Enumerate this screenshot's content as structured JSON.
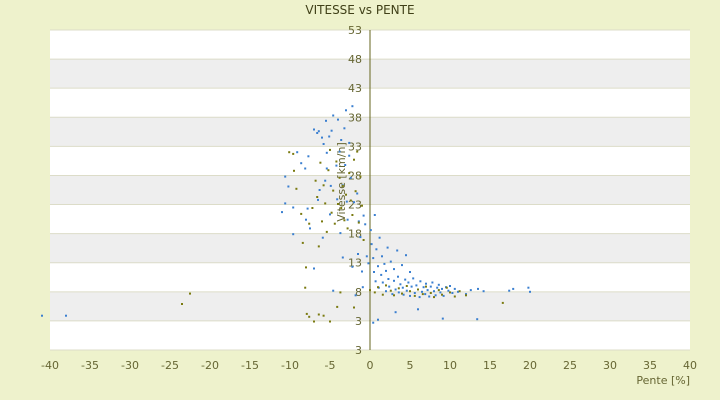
{
  "chart_data": {
    "type": "scatter",
    "title": "VITESSE vs PENTE",
    "xlabel": "Pente [%]",
    "ylabel": "Vitesse [km/h]",
    "xlim": [
      -40,
      40
    ],
    "ylim": [
      -2,
      53
    ],
    "x_ticks": [
      "-40",
      "-35",
      "-30",
      "-25",
      "-20",
      "-15",
      "-10",
      "-5",
      "0",
      "5",
      "10",
      "15",
      "20",
      "25",
      "30",
      "35",
      "40"
    ],
    "y_ticks": [
      "53",
      "48",
      "43",
      "38",
      "33",
      "28",
      "23",
      "18",
      "13",
      "8",
      "3",
      "3"
    ],
    "grid": true,
    "legend": "none",
    "series": [
      {
        "color": "#3a7fd0",
        "points": [
          [
            -41,
            3.9
          ],
          [
            -38,
            3.9
          ],
          [
            -11,
            21.7
          ],
          [
            -10.6,
            23.2
          ],
          [
            -10.6,
            27.8
          ],
          [
            -10.2,
            26.1
          ],
          [
            -9.6,
            17.9
          ],
          [
            -9.6,
            22.5
          ],
          [
            -9.1,
            32
          ],
          [
            -8.6,
            30.1
          ],
          [
            -8.1,
            29.2
          ],
          [
            -8,
            20.4
          ],
          [
            -7.8,
            22.3
          ],
          [
            -7.7,
            31.3
          ],
          [
            -7.5,
            18.9
          ],
          [
            -7,
            12
          ],
          [
            -7,
            35.9
          ],
          [
            -6.6,
            35.3
          ],
          [
            -6.5,
            23.8
          ],
          [
            -6.4,
            35.6
          ],
          [
            -6.3,
            25.5
          ],
          [
            -6,
            34.5
          ],
          [
            -5.9,
            17.3
          ],
          [
            -5.8,
            33.4
          ],
          [
            -5.6,
            27.1
          ],
          [
            -5.5,
            37.4
          ],
          [
            -5.4,
            29.2
          ],
          [
            -5.4,
            31.9
          ],
          [
            -5.1,
            34.7
          ],
          [
            -5,
            21.3
          ],
          [
            -4.9,
            26.2
          ],
          [
            -4.8,
            35.7
          ],
          [
            -4.6,
            38.3
          ],
          [
            -4.6,
            8.2
          ],
          [
            -4.2,
            29.7
          ],
          [
            -4.1,
            23.9
          ],
          [
            -4,
            37.6
          ],
          [
            -3.8,
            32.1
          ],
          [
            -3.7,
            18.1
          ],
          [
            -3.6,
            34.1
          ],
          [
            -3.4,
            26.3
          ],
          [
            -3.4,
            13.9
          ],
          [
            -3.2,
            36.1
          ],
          [
            -3.1,
            29.8
          ],
          [
            -3,
            39.2
          ],
          [
            -2.9,
            23.5
          ],
          [
            -2.8,
            20.4
          ],
          [
            -2.6,
            31.4
          ],
          [
            -2.6,
            33.6
          ],
          [
            -2.4,
            27.6
          ],
          [
            -2.2,
            12.3
          ],
          [
            -2.2,
            39.9
          ],
          [
            -2,
            23.4
          ],
          [
            -1.8,
            7.4
          ],
          [
            -1.6,
            24.9
          ],
          [
            -1.5,
            14.5
          ],
          [
            -1.4,
            20.1
          ],
          [
            -1.2,
            17.4
          ],
          [
            -1,
            11.5
          ],
          [
            -0.9,
            8.8
          ],
          [
            -0.8,
            21.1
          ],
          [
            -0.6,
            19.6
          ],
          [
            -0.4,
            14.1
          ],
          [
            -0.2,
            12.9
          ],
          [
            0.1,
            18.6
          ],
          [
            0.2,
            16.2
          ],
          [
            0.4,
            13.8
          ],
          [
            0.5,
            11.4
          ],
          [
            0.6,
            21.2
          ],
          [
            0.7,
            9.8
          ],
          [
            0.8,
            15.3
          ],
          [
            1,
            12.4
          ],
          [
            1.1,
            8.7
          ],
          [
            1.2,
            17.3
          ],
          [
            1.4,
            10.9
          ],
          [
            1.5,
            14.1
          ],
          [
            1.6,
            9.6
          ],
          [
            1.8,
            12.8
          ],
          [
            2,
            11.6
          ],
          [
            2,
            8.1
          ],
          [
            2.2,
            15.6
          ],
          [
            2.3,
            10.2
          ],
          [
            2.4,
            8.9
          ],
          [
            2.6,
            13.2
          ],
          [
            2.8,
            7.6
          ],
          [
            3,
            9.9
          ],
          [
            3,
            11.9
          ],
          [
            3.2,
            8.4
          ],
          [
            3.4,
            15.1
          ],
          [
            3.5,
            10.6
          ],
          [
            3.6,
            7.9
          ],
          [
            3.8,
            9.3
          ],
          [
            4,
            12.6
          ],
          [
            4.1,
            8.7
          ],
          [
            4.2,
            7.5
          ],
          [
            4.4,
            10.1
          ],
          [
            4.5,
            14.3
          ],
          [
            4.6,
            8.2
          ],
          [
            4.8,
            9.6
          ],
          [
            5,
            11.4
          ],
          [
            5,
            7.3
          ],
          [
            5.2,
            8.9
          ],
          [
            5.4,
            10.3
          ],
          [
            5.6,
            7.8
          ],
          [
            5.8,
            9.1
          ],
          [
            6,
            8.4
          ],
          [
            6.2,
            7.1
          ],
          [
            6.3,
            9.8
          ],
          [
            6.5,
            8
          ],
          [
            6.7,
            8.8
          ],
          [
            6.9,
            7.6
          ],
          [
            7,
            9.4
          ],
          [
            7.2,
            8.3
          ],
          [
            7.4,
            7.2
          ],
          [
            7.6,
            8.9
          ],
          [
            7.8,
            9.6
          ],
          [
            8,
            8.1
          ],
          [
            8.2,
            7.4
          ],
          [
            8.4,
            8.7
          ],
          [
            8.6,
            9.2
          ],
          [
            8.8,
            7.9
          ],
          [
            9,
            8.5
          ],
          [
            9.2,
            7.3
          ],
          [
            9.5,
            8.8
          ],
          [
            9.8,
            8.2
          ],
          [
            10,
            9
          ],
          [
            10.3,
            7.8
          ],
          [
            10.6,
            8.5
          ],
          [
            11,
            8
          ],
          [
            12,
            7.6
          ],
          [
            12.6,
            8.3
          ],
          [
            13.5,
            8.5
          ],
          [
            14.2,
            8.1
          ],
          [
            17.4,
            8.2
          ],
          [
            17.9,
            8.5
          ],
          [
            19.8,
            8.7
          ],
          [
            20,
            8
          ],
          [
            3.2,
            4.5
          ],
          [
            6,
            5
          ],
          [
            13.4,
            3.3
          ],
          [
            9.1,
            3.4
          ],
          [
            1,
            3.2
          ],
          [
            0.4,
            2.7
          ]
        ]
      },
      {
        "color": "#7a7a10",
        "points": [
          [
            -23.5,
            5.9
          ],
          [
            -22.5,
            7.7
          ],
          [
            -10.1,
            32
          ],
          [
            -9.6,
            31.7
          ],
          [
            -9.5,
            28.8
          ],
          [
            -9.2,
            25.7
          ],
          [
            -8.6,
            21.4
          ],
          [
            -8.4,
            16.4
          ],
          [
            -8.1,
            8.7
          ],
          [
            -8,
            12.2
          ],
          [
            -7.6,
            19.7
          ],
          [
            -7.2,
            22.4
          ],
          [
            -6.8,
            27.1
          ],
          [
            -6.6,
            24.3
          ],
          [
            -6.4,
            15.8
          ],
          [
            -6.2,
            30.2
          ],
          [
            -6,
            20.1
          ],
          [
            -5.8,
            26.3
          ],
          [
            -5.6,
            23.2
          ],
          [
            -5.4,
            18.3
          ],
          [
            -5.2,
            28.9
          ],
          [
            -5,
            32.4
          ],
          [
            -4.8,
            21.6
          ],
          [
            -4.6,
            25.4
          ],
          [
            -4.4,
            19.7
          ],
          [
            -4.2,
            30.4
          ],
          [
            -4,
            23.1
          ],
          [
            -3.8,
            27.6
          ],
          [
            -3.6,
            22.4
          ],
          [
            -3.4,
            26.2
          ],
          [
            -3.2,
            20.3
          ],
          [
            -3,
            24.7
          ],
          [
            -2.8,
            18.9
          ],
          [
            -2.6,
            28.4
          ],
          [
            -2.4,
            23.7
          ],
          [
            -2.2,
            21.2
          ],
          [
            -2,
            30.7
          ],
          [
            -1.8,
            25.3
          ],
          [
            -1.6,
            32.1
          ],
          [
            -1.4,
            19.9
          ],
          [
            -1.2,
            27.8
          ],
          [
            -1,
            22.8
          ],
          [
            -0.8,
            16.9
          ],
          [
            0,
            8.3
          ],
          [
            0.6,
            7.9
          ],
          [
            1,
            8.8
          ],
          [
            1.6,
            7.5
          ],
          [
            2,
            9.1
          ],
          [
            2.6,
            8.2
          ],
          [
            3,
            7.4
          ],
          [
            3.6,
            8.6
          ],
          [
            4,
            7.7
          ],
          [
            4.6,
            9
          ],
          [
            5,
            8.1
          ],
          [
            5.6,
            7.3
          ],
          [
            6,
            8.4
          ],
          [
            6.6,
            7.6
          ],
          [
            7,
            8.9
          ],
          [
            7.6,
            7.8
          ],
          [
            8,
            7.1
          ],
          [
            8.6,
            8.3
          ],
          [
            9,
            7.5
          ],
          [
            9.6,
            8.7
          ],
          [
            10,
            7.9
          ],
          [
            10.6,
            7.2
          ],
          [
            11.2,
            8.1
          ],
          [
            12,
            7.4
          ],
          [
            16.6,
            6.1
          ],
          [
            -7.9,
            4.2
          ],
          [
            -7.6,
            3.7
          ],
          [
            -7,
            2.9
          ],
          [
            -6.4,
            4.1
          ],
          [
            -5.8,
            3.9
          ],
          [
            -5,
            2.9
          ],
          [
            -3.7,
            7.9
          ],
          [
            -4.1,
            5.4
          ],
          [
            -2,
            5.3
          ]
        ]
      }
    ]
  }
}
